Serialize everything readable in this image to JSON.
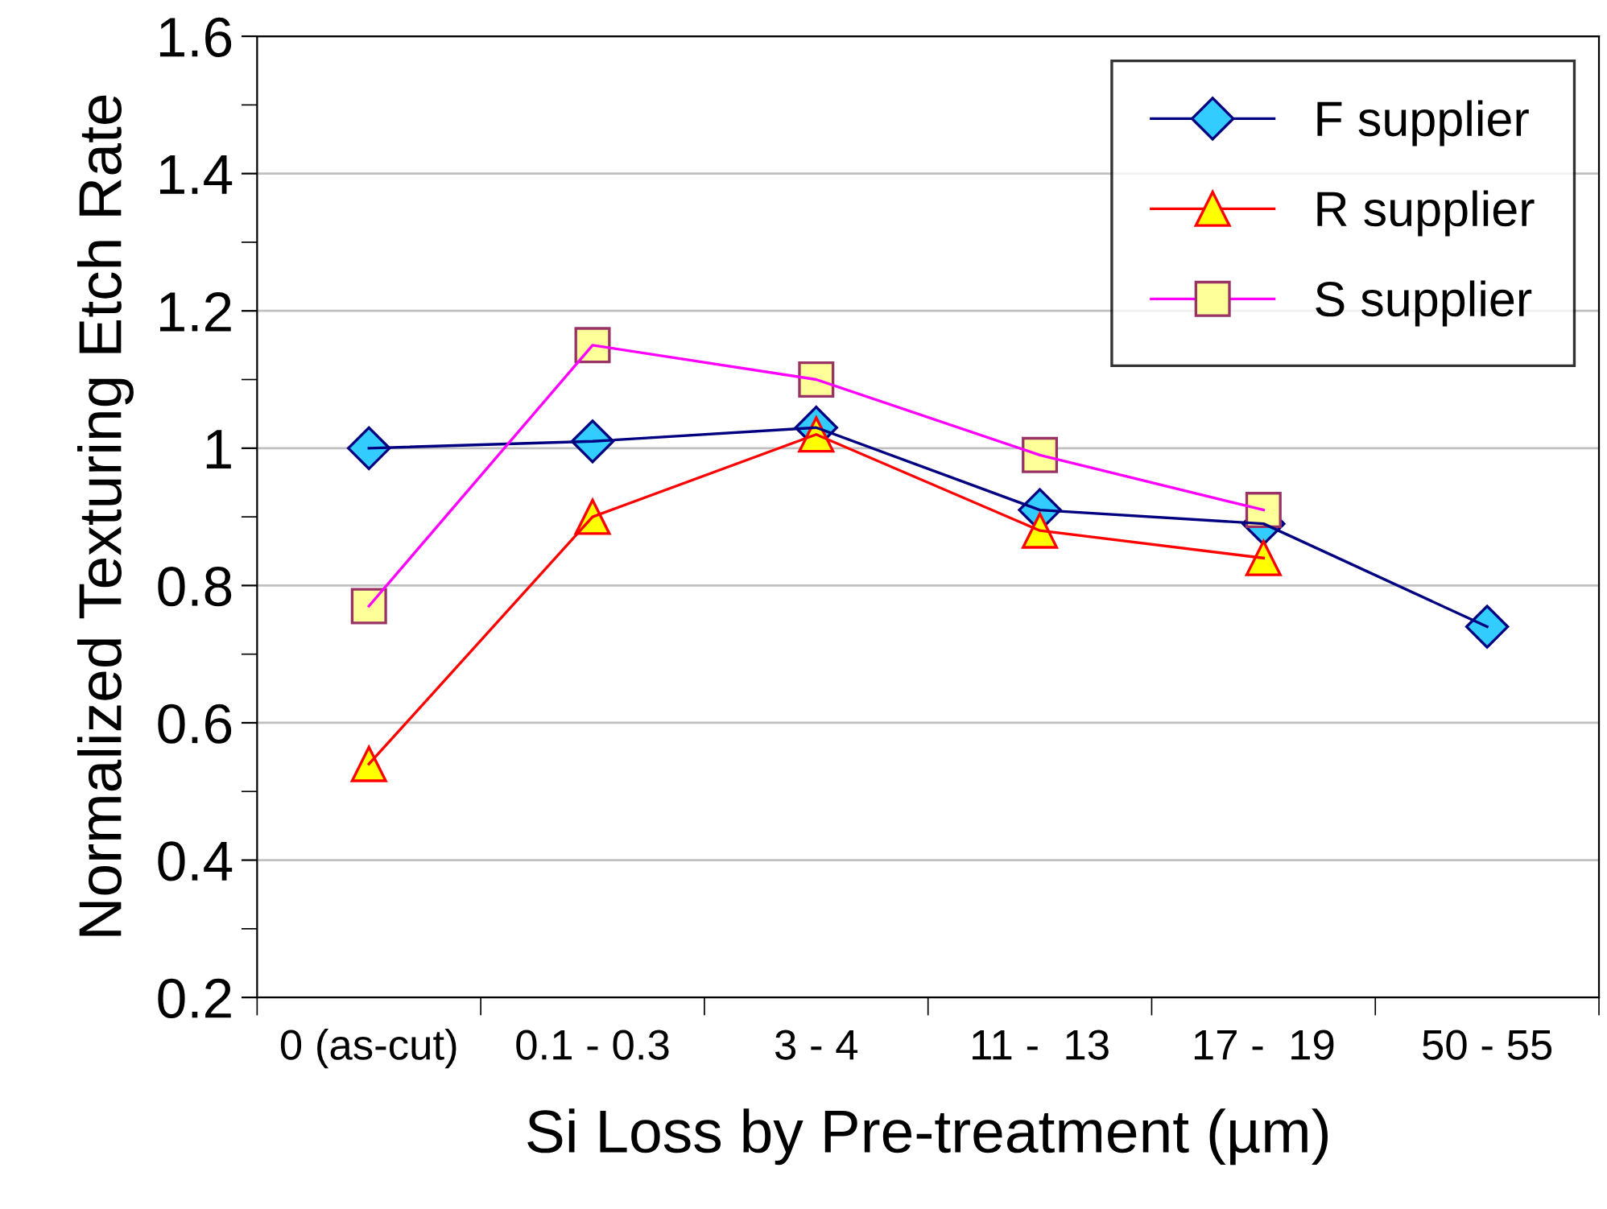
{
  "chart_data": {
    "type": "line",
    "xlabel": "Si Loss by Pre-treatment (µm)",
    "ylabel": "Normalized Texturing Etch Rate",
    "categories": [
      "0 (as-cut)",
      "0.1 - 0.3",
      "3 - 4",
      "11 -  13",
      "17 -  19",
      "50 - 55"
    ],
    "series": [
      {
        "name": "F supplier",
        "color": "#000080",
        "marker": "diamond",
        "values": [
          1.0,
          1.01,
          1.03,
          0.91,
          0.89,
          0.74
        ]
      },
      {
        "name": "R supplier",
        "color": "#ff0000",
        "marker": "triangle",
        "values": [
          0.54,
          0.9,
          1.02,
          0.88,
          0.84,
          null
        ]
      },
      {
        "name": "S supplier",
        "color": "#ff00ff",
        "marker": "square",
        "values": [
          0.77,
          1.15,
          1.1,
          0.99,
          0.91,
          null
        ]
      }
    ],
    "ylim": [
      0.2,
      1.6
    ],
    "yticks": [
      0.2,
      0.4,
      0.6,
      0.8,
      1,
      1.2,
      1.4,
      1.6
    ],
    "grid": "y",
    "legend": "top right",
    "line_style": "solid"
  }
}
